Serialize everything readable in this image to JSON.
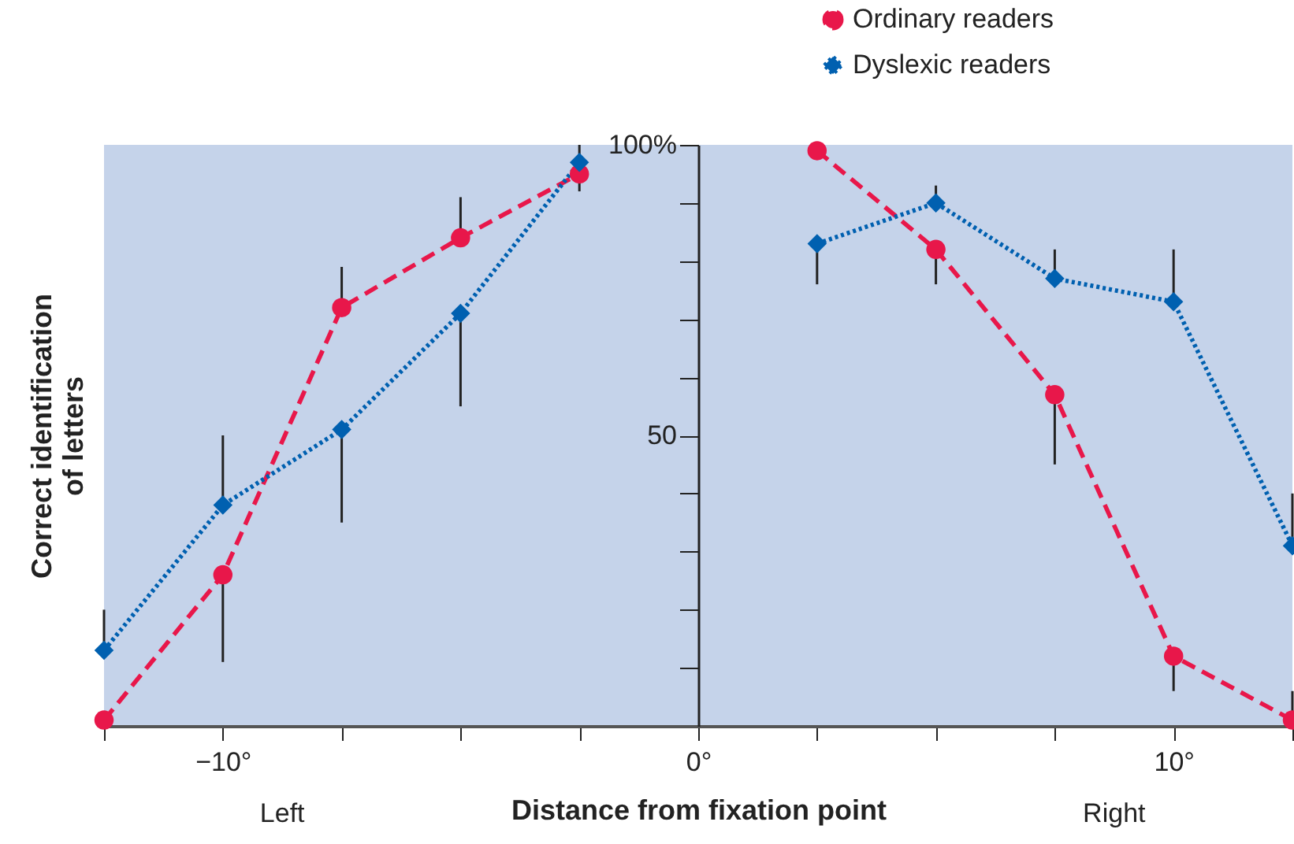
{
  "chart_data": {
    "type": "line",
    "xlabel": "Distance from fixation point",
    "ylabel": "Correct identification\nof letters",
    "annotations": [
      "Left",
      "Right"
    ],
    "xlim": [
      -12.5,
      12.5
    ],
    "xticks": [
      {
        "value": -12.5,
        "label": null
      },
      {
        "value": -10,
        "label": "−10°"
      },
      {
        "value": -7.5,
        "label": null
      },
      {
        "value": -5,
        "label": null
      },
      {
        "value": -2.5,
        "label": null
      },
      {
        "value": 0,
        "label": "0°"
      },
      {
        "value": 2.5,
        "label": null
      },
      {
        "value": 5,
        "label": null
      },
      {
        "value": 7.5,
        "label": null
      },
      {
        "value": 10,
        "label": "10°"
      },
      {
        "value": 12.5,
        "label": null
      }
    ],
    "ylim": [
      0,
      100
    ],
    "yticks": [
      {
        "value": 10,
        "label": null
      },
      {
        "value": 20,
        "label": null
      },
      {
        "value": 30,
        "label": null
      },
      {
        "value": 40,
        "label": null
      },
      50,
      {
        "value": 60,
        "label": null
      },
      {
        "value": 70,
        "label": null
      },
      {
        "value": 80,
        "label": null
      },
      {
        "value": 90,
        "label": null
      },
      {
        "value": 100,
        "label": "100%"
      }
    ],
    "grid": false,
    "legend": "top right",
    "x": [
      -12.5,
      -10,
      -7.5,
      -5,
      -2.5,
      0,
      2.5,
      5,
      7.5,
      10,
      12.5
    ],
    "series": [
      {
        "name": "Ordinary readers",
        "color": "#e8174a",
        "marker": "circle",
        "line_style": "dashed",
        "values": [
          1,
          26,
          72,
          84,
          95,
          null,
          99,
          82,
          57,
          12,
          1
        ],
        "errors": [
          null,
          [
            11,
            26
          ],
          [
            72,
            79
          ],
          [
            84,
            91
          ],
          null,
          null,
          null,
          [
            76,
            82
          ],
          [
            45,
            57
          ],
          [
            6,
            12
          ],
          [
            1,
            6
          ]
        ]
      },
      {
        "name": "Dyslexic readers",
        "color": "#0060b0",
        "marker": "diamond",
        "line_style": "dotted",
        "values": [
          13,
          38,
          51,
          71,
          97,
          null,
          83,
          90,
          77,
          73,
          31
        ],
        "errors": [
          [
            13,
            20
          ],
          [
            38,
            50
          ],
          [
            35,
            51
          ],
          [
            55,
            71
          ],
          [
            92,
            100
          ],
          null,
          [
            76,
            83
          ],
          [
            90,
            93
          ],
          [
            77,
            82
          ],
          [
            73,
            82
          ],
          [
            31,
            40
          ]
        ]
      }
    ]
  }
}
